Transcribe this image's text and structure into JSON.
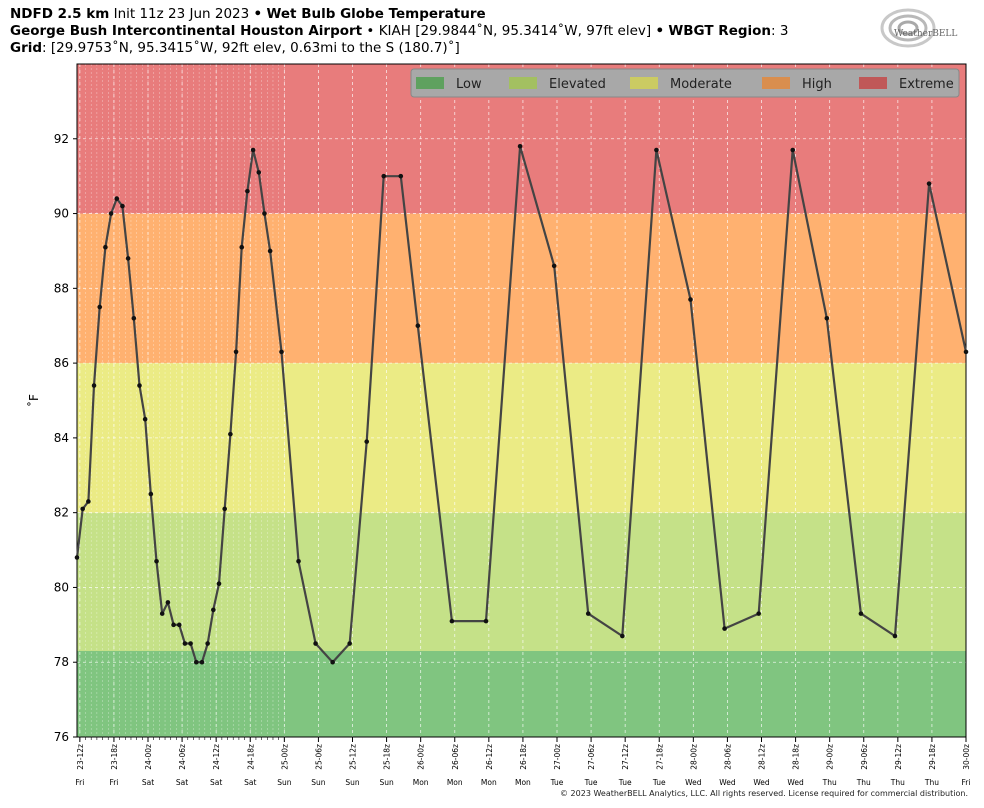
{
  "header": {
    "line1_model": "NDFD 2.5 km",
    "line1_init": "Init 11z 23 Jun 2023",
    "line1_sep": "•",
    "line1_product": "Wet Bulb Globe Temperature",
    "line2_station": "George Bush Intercontinental Houston Airport",
    "line2_sep1": "•",
    "line2_info": "KIAH [29.9844˚N, 95.3414˚W, 97ft elev]",
    "line2_sep2": "•",
    "line2_region_label": "WBGT Region",
    "line2_region_value": ": 3",
    "line3_grid_label": "Grid",
    "line3_grid_value": ": [29.9753˚N, 95.3415˚W, 92ft elev, 0.63mi to the S (180.7)˚]"
  },
  "logo": {
    "text": "WeatherBELL",
    "icon": "swirl-logo-icon"
  },
  "copyright": "© 2023 WeatherBELL Analytics, LLC. All rights reserved. License required for commercial distribution.",
  "colors": {
    "low": "#80c580",
    "elevated": "#c5e188",
    "moderate": "#ebeb85",
    "high": "#ffb170",
    "extreme": "#e87c7c",
    "line": "#444444",
    "legend_bg": "#a8a8a8"
  },
  "chart_data": {
    "type": "line",
    "ylabel": "˚F",
    "ylim": [
      76,
      94
    ],
    "yticks": [
      76,
      78,
      80,
      82,
      84,
      86,
      88,
      90,
      92
    ],
    "grid": true,
    "legend_position": "top-right",
    "categories_bands": [
      {
        "name": "Low",
        "min": 76,
        "max": 78.3,
        "color": "#80c580",
        "legend_color": "#5fa15f"
      },
      {
        "name": "Elevated",
        "min": 78.3,
        "max": 82,
        "color": "#c5e188",
        "legend_color": "#a3c061"
      },
      {
        "name": "Moderate",
        "min": 82,
        "max": 86,
        "color": "#ebeb85",
        "legend_color": "#cbcb62"
      },
      {
        "name": "High",
        "min": 86,
        "max": 90,
        "color": "#ffb170",
        "legend_color": "#d98e4e"
      },
      {
        "name": "Extreme",
        "min": 90,
        "max": 94,
        "color": "#e87c7c",
        "legend_color": "#c05858"
      }
    ],
    "x_ticks": [
      {
        "h": 1,
        "label": "23-12z",
        "day": "Fri"
      },
      {
        "h": 7,
        "label": "23-18z",
        "day": "Fri"
      },
      {
        "h": 13,
        "label": "24-00z",
        "day": "Sat"
      },
      {
        "h": 19,
        "label": "24-06z",
        "day": "Sat"
      },
      {
        "h": 25,
        "label": "24-12z",
        "day": "Sat"
      },
      {
        "h": 31,
        "label": "24-18z",
        "day": "Sat"
      },
      {
        "h": 37,
        "label": "25-00z",
        "day": "Sun"
      },
      {
        "h": 43,
        "label": "25-06z",
        "day": "Sun"
      },
      {
        "h": 49,
        "label": "25-12z",
        "day": "Sun"
      },
      {
        "h": 55,
        "label": "25-18z",
        "day": "Sun"
      },
      {
        "h": 61,
        "label": "26-00z",
        "day": "Mon"
      },
      {
        "h": 67,
        "label": "26-06z",
        "day": "Mon"
      },
      {
        "h": 73,
        "label": "26-12z",
        "day": "Mon"
      },
      {
        "h": 79,
        "label": "26-18z",
        "day": "Mon"
      },
      {
        "h": 85,
        "label": "27-00z",
        "day": "Tue"
      },
      {
        "h": 91,
        "label": "27-06z",
        "day": "Tue"
      },
      {
        "h": 97,
        "label": "27-12z",
        "day": "Tue"
      },
      {
        "h": 103,
        "label": "27-18z",
        "day": "Tue"
      },
      {
        "h": 109,
        "label": "28-00z",
        "day": "Wed"
      },
      {
        "h": 115,
        "label": "28-06z",
        "day": "Wed"
      },
      {
        "h": 121,
        "label": "28-12z",
        "day": "Wed"
      },
      {
        "h": 127,
        "label": "28-18z",
        "day": "Wed"
      },
      {
        "h": 133,
        "label": "29-00z",
        "day": "Thu"
      },
      {
        "h": 139,
        "label": "29-06z",
        "day": "Thu"
      },
      {
        "h": 145,
        "label": "29-12z",
        "day": "Thu"
      },
      {
        "h": 151,
        "label": "29-18z",
        "day": "Thu"
      },
      {
        "h": 157,
        "label": "30-00z",
        "day": "Fri"
      }
    ],
    "xlim": [
      0.5,
      157
    ],
    "series": [
      {
        "values": [
          [
            0.5,
            80.8
          ],
          [
            1.5,
            82.1
          ],
          [
            2.5,
            82.3
          ],
          [
            3.5,
            85.4
          ],
          [
            4.5,
            87.5
          ],
          [
            5.5,
            89.1
          ],
          [
            6.5,
            90.0
          ],
          [
            7.5,
            90.4
          ],
          [
            8.5,
            90.2
          ],
          [
            9.5,
            88.8
          ],
          [
            10.5,
            87.2
          ],
          [
            11.5,
            85.4
          ],
          [
            12.5,
            84.5
          ],
          [
            13.5,
            82.5
          ],
          [
            14.5,
            80.7
          ],
          [
            15.5,
            79.3
          ],
          [
            16.5,
            79.6
          ],
          [
            17.5,
            79.0
          ],
          [
            18.5,
            79.0
          ],
          [
            19.5,
            78.5
          ],
          [
            20.5,
            78.5
          ],
          [
            21.5,
            78.0
          ],
          [
            22.5,
            78.0
          ],
          [
            23.5,
            78.5
          ],
          [
            24.5,
            79.4
          ],
          [
            25.5,
            80.1
          ],
          [
            26.5,
            82.1
          ],
          [
            27.5,
            84.1
          ],
          [
            28.5,
            86.3
          ],
          [
            29.5,
            89.1
          ],
          [
            30.5,
            90.6
          ],
          [
            31.5,
            91.7
          ],
          [
            32.5,
            91.1
          ],
          [
            33.5,
            90.0
          ],
          [
            34.5,
            89.0
          ],
          [
            36.5,
            86.3
          ],
          [
            39.5,
            80.7
          ],
          [
            42.5,
            78.5
          ],
          [
            45.5,
            78.0
          ],
          [
            48.5,
            78.5
          ],
          [
            51.5,
            83.9
          ],
          [
            54.5,
            91.0
          ],
          [
            57.5,
            91.0
          ],
          [
            60.5,
            87.0
          ],
          [
            66.5,
            79.1
          ],
          [
            72.5,
            79.1
          ],
          [
            78.5,
            91.8
          ],
          [
            84.5,
            88.6
          ],
          [
            90.5,
            79.3
          ],
          [
            96.5,
            78.7
          ],
          [
            102.5,
            91.7
          ],
          [
            108.5,
            87.7
          ],
          [
            114.5,
            78.9
          ],
          [
            120.5,
            79.3
          ],
          [
            126.5,
            91.7
          ],
          [
            132.5,
            87.2
          ],
          [
            138.5,
            79.3
          ],
          [
            144.5,
            78.7
          ],
          [
            150.5,
            90.8
          ],
          [
            157,
            86.3
          ]
        ]
      }
    ]
  }
}
